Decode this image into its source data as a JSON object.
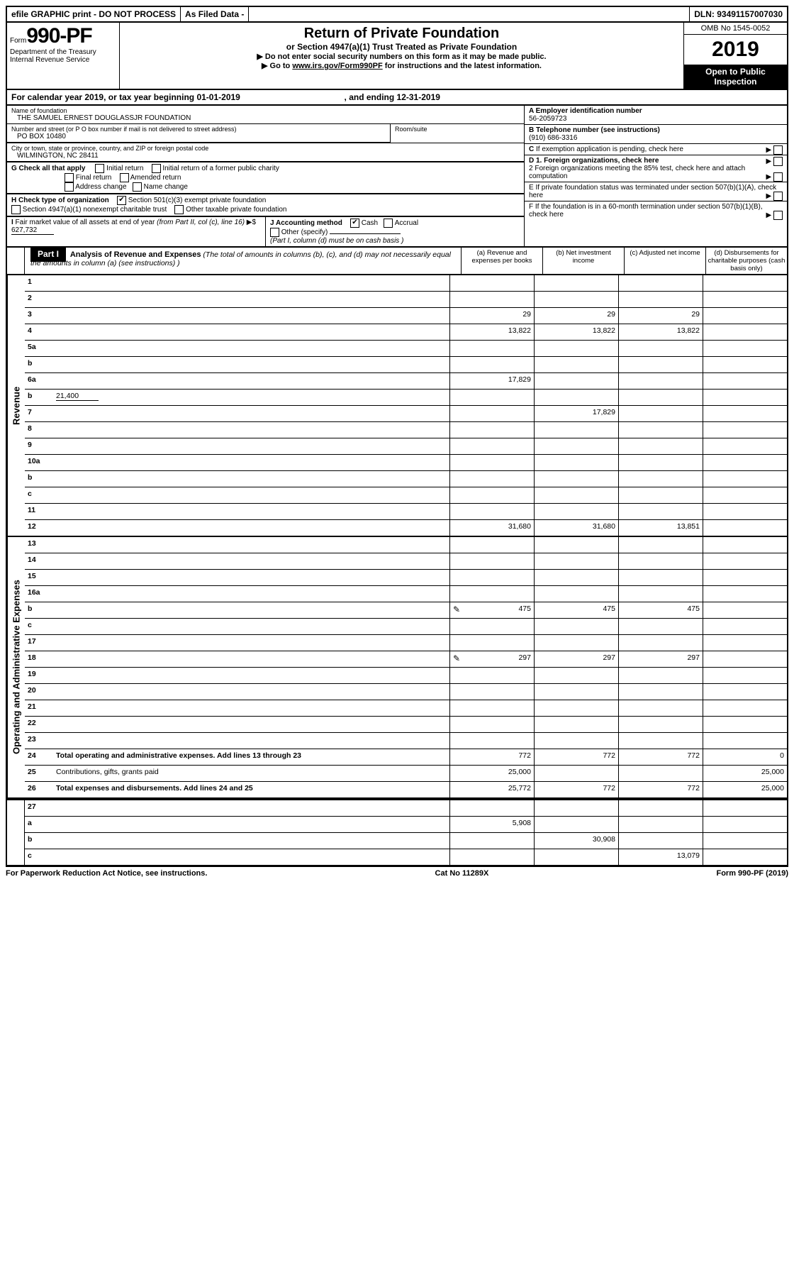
{
  "topbar": {
    "efile": "efile GRAPHIC print - DO NOT PROCESS",
    "asfiled": "As Filed Data -",
    "dln": "DLN: 93491157007030"
  },
  "header": {
    "form_prefix": "Form",
    "form_num": "990-PF",
    "dept": "Department of the Treasury",
    "irs": "Internal Revenue Service",
    "title": "Return of Private Foundation",
    "sub": "or Section 4947(a)(1) Trust Treated as Private Foundation",
    "note1": "▶ Do not enter social security numbers on this form as it may be made public.",
    "note2": "▶ Go to www.irs.gov/Form990PF for instructions and the latest information.",
    "omb": "OMB No 1545-0052",
    "year": "2019",
    "inspect": "Open to Public Inspection"
  },
  "calyear": {
    "prefix": "For calendar year 2019, or tax year beginning ",
    "begin": "01-01-2019",
    "mid": ", and ending ",
    "end": "12-31-2019"
  },
  "info": {
    "name_label": "Name of foundation",
    "name": "THE SAMUEL ERNEST DOUGLASSJR FOUNDATION",
    "addr_label": "Number and street (or P O  box number if mail is not delivered to street address)",
    "addr": "PO BOX 10480",
    "room_label": "Room/suite",
    "city_label": "City or town, state or province, country, and ZIP or foreign postal code",
    "city": "WILMINGTON, NC  28411",
    "ein_label": "A Employer identification number",
    "ein": "56-2059723",
    "tel_label": "B Telephone number (see instructions)",
    "tel": "(910) 686-3316",
    "c_label": "C If exemption application is pending, check here",
    "g_label": "G Check all that apply",
    "g_opts": [
      "Initial return",
      "Initial return of a former public charity",
      "Final return",
      "Amended return",
      "Address change",
      "Name change"
    ],
    "h_label": "H Check type of organization",
    "h_501": "Section 501(c)(3) exempt private foundation",
    "h_4947": "Section 4947(a)(1) nonexempt charitable trust",
    "h_other": "Other taxable private foundation",
    "d1": "D 1. Foreign organizations, check here",
    "d2": "2 Foreign organizations meeting the 85% test, check here and attach computation",
    "e": "E  If private foundation status was terminated under section 507(b)(1)(A), check here",
    "i_label": "I Fair market value of all assets at end of year (from Part II, col (c), line 16) ▶$ ",
    "i_val": "627,732",
    "j_label": "J Accounting method",
    "j_cash": "Cash",
    "j_accrual": "Accrual",
    "j_other": "Other (specify)",
    "j_note": "(Part I, column (d) must be on cash basis )",
    "f": "F  If the foundation is in a 60-month termination under section 507(b)(1)(B), check here"
  },
  "part1": {
    "label": "Part I",
    "title": "Analysis of Revenue and Expenses",
    "desc": " (The total of amounts in columns (b), (c), and (d) may not necessarily equal the amounts in column (a) (see instructions) )",
    "col_a": "(a)   Revenue and expenses per books",
    "col_b": "(b)  Net investment income",
    "col_c": "(c)  Adjusted net income",
    "col_d": "(d)  Disbursements for charitable purposes (cash basis only)"
  },
  "revenue_label": "Revenue",
  "expense_label": "Operating and Administrative Expenses",
  "rows": {
    "1": {
      "n": "1",
      "d": "",
      "a": "",
      "b": "",
      "c": ""
    },
    "2": {
      "n": "2",
      "d": "",
      "a": "",
      "b": "",
      "c": ""
    },
    "3": {
      "n": "3",
      "d": "",
      "a": "29",
      "b": "29",
      "c": "29"
    },
    "4": {
      "n": "4",
      "d": "",
      "a": "13,822",
      "b": "13,822",
      "c": "13,822"
    },
    "5a": {
      "n": "5a",
      "d": "",
      "a": "",
      "b": "",
      "c": ""
    },
    "5b": {
      "n": "b",
      "d": "",
      "a": "",
      "b": "",
      "c": ""
    },
    "6a": {
      "n": "6a",
      "d": "",
      "a": "17,829",
      "b": "",
      "c": ""
    },
    "6b": {
      "n": "b",
      "d": "",
      "v": "21,400",
      "a": "",
      "b": "",
      "c": ""
    },
    "7": {
      "n": "7",
      "d": "",
      "a": "",
      "b": "17,829",
      "c": ""
    },
    "8": {
      "n": "8",
      "d": "",
      "a": "",
      "b": "",
      "c": ""
    },
    "9": {
      "n": "9",
      "d": "",
      "a": "",
      "b": "",
      "c": ""
    },
    "10a": {
      "n": "10a",
      "d": "",
      "a": "",
      "b": "",
      "c": ""
    },
    "10b": {
      "n": "b",
      "d": "",
      "a": "",
      "b": "",
      "c": ""
    },
    "10c": {
      "n": "c",
      "d": "",
      "a": "",
      "b": "",
      "c": ""
    },
    "11": {
      "n": "11",
      "d": "",
      "a": "",
      "b": "",
      "c": ""
    },
    "12": {
      "n": "12",
      "d": "",
      "a": "31,680",
      "b": "31,680",
      "c": "13,851"
    },
    "13": {
      "n": "13",
      "d": "",
      "a": "",
      "b": "",
      "c": ""
    },
    "14": {
      "n": "14",
      "d": "",
      "a": "",
      "b": "",
      "c": ""
    },
    "15": {
      "n": "15",
      "d": "",
      "a": "",
      "b": "",
      "c": ""
    },
    "16a": {
      "n": "16a",
      "d": "",
      "a": "",
      "b": "",
      "c": ""
    },
    "16b": {
      "n": "b",
      "d": "",
      "a": "475",
      "b": "475",
      "c": "475",
      "icon": true
    },
    "16c": {
      "n": "c",
      "d": "",
      "a": "",
      "b": "",
      "c": ""
    },
    "17": {
      "n": "17",
      "d": "",
      "a": "",
      "b": "",
      "c": ""
    },
    "18": {
      "n": "18",
      "d": "",
      "a": "297",
      "b": "297",
      "c": "297",
      "icon": true
    },
    "19": {
      "n": "19",
      "d": "",
      "a": "",
      "b": "",
      "c": ""
    },
    "20": {
      "n": "20",
      "d": "",
      "a": "",
      "b": "",
      "c": ""
    },
    "21": {
      "n": "21",
      "d": "",
      "a": "",
      "b": "",
      "c": ""
    },
    "22": {
      "n": "22",
      "d": "",
      "a": "",
      "b": "",
      "c": ""
    },
    "23": {
      "n": "23",
      "d": "",
      "a": "",
      "b": "",
      "c": ""
    },
    "24": {
      "n": "24",
      "d": "0",
      "a": "772",
      "b": "772",
      "c": "772"
    },
    "25": {
      "n": "25",
      "d": "25,000",
      "a": "25,000",
      "b": "",
      "c": ""
    },
    "26": {
      "n": "26",
      "d": "25,000",
      "a": "25,772",
      "b": "772",
      "c": "772"
    },
    "27": {
      "n": "27",
      "d": "",
      "a": "",
      "b": "",
      "c": ""
    },
    "27a": {
      "n": "a",
      "d": "",
      "a": "5,908",
      "b": "",
      "c": ""
    },
    "27b": {
      "n": "b",
      "d": "",
      "a": "",
      "b": "30,908",
      "c": ""
    },
    "27c": {
      "n": "c",
      "d": "",
      "a": "",
      "b": "",
      "c": "13,079"
    }
  },
  "footer": {
    "left": "For Paperwork Reduction Act Notice, see instructions.",
    "mid": "Cat No  11289X",
    "right": "Form 990-PF (2019)"
  }
}
